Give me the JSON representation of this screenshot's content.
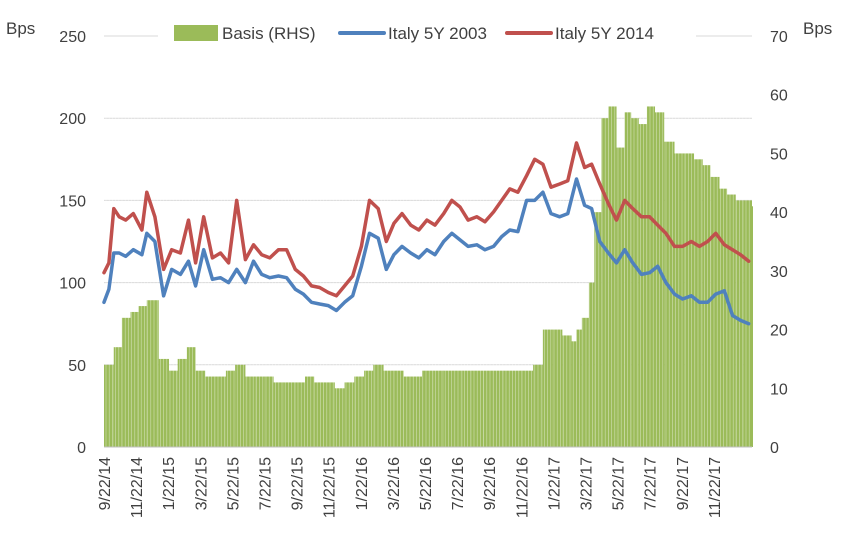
{
  "chart_data": {
    "type": "bar+line",
    "y_left_unit": "Bps",
    "y_right_unit": "Bps",
    "y_left_ticks": [
      "0",
      "50",
      "100",
      "150",
      "200",
      "250"
    ],
    "y_right_ticks": [
      "0",
      "10",
      "20",
      "30",
      "40",
      "50",
      "60",
      "70"
    ],
    "ylim_left": [
      0,
      250
    ],
    "ylim_right": [
      0,
      70
    ],
    "x_tick_labels": [
      "9/22/14",
      "11/22/14",
      "1/22/15",
      "3/22/15",
      "5/22/15",
      "7/22/15",
      "9/22/15",
      "11/22/15",
      "1/22/16",
      "3/22/16",
      "5/22/16",
      "7/22/16",
      "9/22/16",
      "11/22/16",
      "1/22/17",
      "3/22/17",
      "5/22/17",
      "7/22/17",
      "9/22/17",
      "11/22/17"
    ],
    "x_range": [
      "2014-09-22",
      "2017-12-31"
    ],
    "legend": {
      "placement": "top",
      "items": [
        {
          "label": "Basis (RHS)",
          "color": "#9bbb59",
          "kind": "bar"
        },
        {
          "label": "Italy 5Y 2003",
          "color": "#4f81bd",
          "kind": "line"
        },
        {
          "label": "Italy 5Y 2014",
          "color": "#c0504d",
          "kind": "line"
        }
      ]
    },
    "series": [
      {
        "name": "Basis (RHS)",
        "axis": "right",
        "type": "bar",
        "color": "#9bbb59",
        "x": [
          "2014-09-22",
          "2014-10-10",
          "2014-10-25",
          "2014-11-10",
          "2014-11-25",
          "2014-12-10",
          "2015-01-01",
          "2015-01-20",
          "2015-02-05",
          "2015-02-22",
          "2015-03-10",
          "2015-03-28",
          "2015-04-15",
          "2015-05-05",
          "2015-05-22",
          "2015-06-10",
          "2015-06-28",
          "2015-07-15",
          "2015-08-01",
          "2015-08-20",
          "2015-09-10",
          "2015-09-28",
          "2015-10-15",
          "2015-11-01",
          "2015-11-22",
          "2015-12-10",
          "2015-12-28",
          "2016-01-15",
          "2016-02-01",
          "2016-02-20",
          "2016-03-10",
          "2016-03-28",
          "2016-04-15",
          "2016-05-01",
          "2016-05-22",
          "2016-06-10",
          "2016-06-28",
          "2016-07-15",
          "2016-08-01",
          "2016-08-22",
          "2016-09-10",
          "2016-09-28",
          "2016-10-15",
          "2016-11-01",
          "2016-11-22",
          "2016-12-10",
          "2016-12-28",
          "2017-01-15",
          "2017-02-01",
          "2017-02-10",
          "2017-02-20",
          "2017-03-05",
          "2017-03-15",
          "2017-03-28",
          "2017-04-10",
          "2017-04-25",
          "2017-05-10",
          "2017-05-22",
          "2017-06-05",
          "2017-06-20",
          "2017-07-05",
          "2017-07-22",
          "2017-08-10",
          "2017-08-28",
          "2017-09-15",
          "2017-10-01",
          "2017-10-15",
          "2017-11-01",
          "2017-11-15",
          "2017-12-01",
          "2017-12-15",
          "2017-12-31"
        ],
        "values": [
          14,
          17,
          22,
          23,
          24,
          25,
          15,
          13,
          15,
          17,
          13,
          12,
          12,
          13,
          14,
          12,
          12,
          12,
          11,
          11,
          11,
          12,
          11,
          11,
          10,
          11,
          12,
          13,
          14,
          13,
          13,
          12,
          12,
          13,
          13,
          13,
          13,
          13,
          13,
          13,
          13,
          13,
          13,
          13,
          14,
          20,
          20,
          19,
          18,
          20,
          22,
          28,
          40,
          56,
          58,
          51,
          57,
          56,
          55,
          58,
          57,
          52,
          50,
          50,
          49,
          48,
          46,
          44,
          43,
          42,
          42,
          41
        ]
      },
      {
        "name": "Italy 5Y 2003",
        "axis": "left",
        "type": "line",
        "color": "#4f81bd",
        "x": [
          "2014-09-22",
          "2014-10-01",
          "2014-10-10",
          "2014-10-20",
          "2014-11-01",
          "2014-11-15",
          "2014-12-01",
          "2014-12-10",
          "2014-12-25",
          "2015-01-10",
          "2015-01-25",
          "2015-02-10",
          "2015-02-25",
          "2015-03-10",
          "2015-03-25",
          "2015-04-10",
          "2015-04-25",
          "2015-05-10",
          "2015-05-25",
          "2015-06-10",
          "2015-06-25",
          "2015-07-10",
          "2015-07-25",
          "2015-08-10",
          "2015-08-25",
          "2015-09-10",
          "2015-09-25",
          "2015-10-10",
          "2015-10-25",
          "2015-11-10",
          "2015-11-25",
          "2015-12-10",
          "2015-12-25",
          "2016-01-10",
          "2016-01-25",
          "2016-02-10",
          "2016-02-25",
          "2016-03-10",
          "2016-03-25",
          "2016-04-10",
          "2016-04-25",
          "2016-05-10",
          "2016-05-25",
          "2016-06-10",
          "2016-06-25",
          "2016-07-10",
          "2016-07-25",
          "2016-08-10",
          "2016-08-25",
          "2016-09-10",
          "2016-09-25",
          "2016-10-10",
          "2016-10-25",
          "2016-11-10",
          "2016-11-25",
          "2016-12-10",
          "2016-12-25",
          "2017-01-10",
          "2017-01-25",
          "2017-02-10",
          "2017-02-25",
          "2017-03-10",
          "2017-03-25",
          "2017-04-10",
          "2017-04-25",
          "2017-05-10",
          "2017-05-25",
          "2017-06-10",
          "2017-06-25",
          "2017-07-10",
          "2017-07-25",
          "2017-08-10",
          "2017-08-25",
          "2017-09-10",
          "2017-09-25",
          "2017-10-10",
          "2017-10-25",
          "2017-11-10",
          "2017-11-25",
          "2017-12-10",
          "2017-12-25"
        ],
        "values": [
          88,
          96,
          118,
          118,
          116,
          120,
          117,
          130,
          125,
          92,
          108,
          105,
          113,
          98,
          120,
          102,
          103,
          100,
          108,
          100,
          113,
          105,
          103,
          104,
          103,
          96,
          93,
          88,
          87,
          86,
          83,
          88,
          92,
          110,
          130,
          127,
          108,
          117,
          122,
          118,
          115,
          120,
          117,
          125,
          130,
          126,
          122,
          123,
          120,
          122,
          128,
          132,
          131,
          150,
          150,
          155,
          142,
          140,
          142,
          163,
          147,
          145,
          125,
          118,
          112,
          120,
          112,
          105,
          106,
          110,
          100,
          93,
          90,
          92,
          88,
          88,
          93,
          95,
          80,
          77,
          75
        ]
      },
      {
        "name": "Italy 5Y 2014",
        "axis": "left",
        "type": "line",
        "color": "#c0504d",
        "x": [
          "2014-09-22",
          "2014-10-01",
          "2014-10-10",
          "2014-10-20",
          "2014-11-01",
          "2014-11-15",
          "2014-12-01",
          "2014-12-10",
          "2014-12-25",
          "2015-01-10",
          "2015-01-25",
          "2015-02-10",
          "2015-02-25",
          "2015-03-10",
          "2015-03-25",
          "2015-04-10",
          "2015-04-25",
          "2015-05-10",
          "2015-05-25",
          "2015-06-10",
          "2015-06-25",
          "2015-07-10",
          "2015-07-25",
          "2015-08-10",
          "2015-08-25",
          "2015-09-10",
          "2015-09-25",
          "2015-10-10",
          "2015-10-25",
          "2015-11-10",
          "2015-11-25",
          "2015-12-10",
          "2015-12-25",
          "2016-01-10",
          "2016-01-25",
          "2016-02-10",
          "2016-02-25",
          "2016-03-10",
          "2016-03-25",
          "2016-04-10",
          "2016-04-25",
          "2016-05-10",
          "2016-05-25",
          "2016-06-10",
          "2016-06-25",
          "2016-07-10",
          "2016-07-25",
          "2016-08-10",
          "2016-08-25",
          "2016-09-10",
          "2016-09-25",
          "2016-10-10",
          "2016-10-25",
          "2016-11-10",
          "2016-11-25",
          "2016-12-10",
          "2016-12-25",
          "2017-01-10",
          "2017-01-25",
          "2017-02-10",
          "2017-02-25",
          "2017-03-10",
          "2017-03-25",
          "2017-04-10",
          "2017-04-25",
          "2017-05-10",
          "2017-05-25",
          "2017-06-10",
          "2017-06-25",
          "2017-07-10",
          "2017-07-25",
          "2017-08-10",
          "2017-08-25",
          "2017-09-10",
          "2017-09-25",
          "2017-10-10",
          "2017-10-25",
          "2017-11-10",
          "2017-11-25",
          "2017-12-10",
          "2017-12-25"
        ],
        "values": [
          106,
          112,
          145,
          140,
          138,
          142,
          132,
          155,
          140,
          108,
          120,
          118,
          138,
          112,
          140,
          115,
          118,
          112,
          150,
          114,
          123,
          117,
          115,
          120,
          120,
          108,
          104,
          98,
          97,
          94,
          92,
          98,
          104,
          122,
          150,
          145,
          125,
          136,
          142,
          135,
          132,
          138,
          135,
          142,
          150,
          146,
          138,
          140,
          137,
          143,
          150,
          157,
          155,
          165,
          175,
          172,
          158,
          160,
          162,
          185,
          170,
          172,
          160,
          148,
          138,
          150,
          145,
          140,
          140,
          135,
          130,
          122,
          122,
          125,
          122,
          125,
          130,
          123,
          120,
          117,
          113
        ]
      }
    ]
  }
}
